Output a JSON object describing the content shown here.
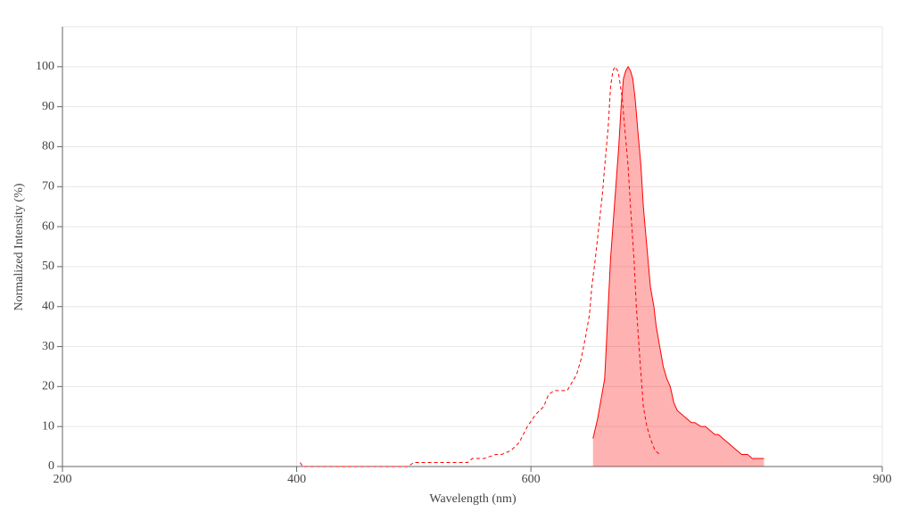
{
  "chart_data": {
    "type": "line",
    "x_label": "Wavelength (nm)",
    "y_label": "Normalized Intensity (%)",
    "xlim": [
      200,
      900
    ],
    "xticks": [
      200,
      400,
      600,
      900
    ],
    "ylim": [
      0,
      110
    ],
    "yticks": [
      0,
      10,
      20,
      30,
      40,
      50,
      60,
      70,
      80,
      90,
      100
    ],
    "grid": true,
    "series": [
      {
        "color": "#ff0000",
        "style": "dashed",
        "fill": false,
        "x": [
          403,
          405,
          420,
          440,
          460,
          480,
          495,
          500,
          520,
          546,
          550,
          560,
          570,
          575,
          583,
          590,
          597,
          604,
          611,
          615,
          620,
          626,
          631,
          635,
          639,
          643,
          647,
          650,
          652,
          655,
          658,
          661,
          663,
          666,
          668,
          670,
          672,
          674,
          675,
          678,
          680,
          683,
          685,
          688,
          690,
          693,
          696,
          699,
          702,
          706,
          710
        ],
        "values": [
          1,
          0,
          0,
          0,
          0,
          0,
          0,
          1,
          1,
          1,
          2,
          2,
          3,
          3,
          4,
          6,
          10,
          13,
          15,
          18,
          19,
          19,
          19,
          21,
          23,
          27,
          33,
          38,
          45,
          52,
          60,
          68,
          75,
          85,
          95,
          99,
          100,
          99,
          98,
          92,
          85,
          75,
          65,
          52,
          40,
          27,
          15,
          10,
          7,
          4,
          3
        ]
      },
      {
        "color": "#ff0000",
        "style": "solid",
        "fill": true,
        "x": [
          653,
          657,
          660,
          663,
          666,
          668,
          670,
          673,
          675,
          677,
          679,
          681,
          683,
          685,
          687,
          689,
          691,
          694,
          696,
          699,
          702,
          705,
          707,
          710,
          713,
          716,
          719,
          722,
          725,
          729,
          733,
          737,
          740,
          745,
          749,
          753,
          757,
          760,
          764,
          768,
          772,
          776,
          780,
          785,
          789,
          794,
          799
        ],
        "values": [
          7,
          12,
          17,
          22,
          40,
          52,
          60,
          72,
          80,
          90,
          97,
          99,
          100,
          99,
          97,
          92,
          85,
          75,
          65,
          55,
          45,
          40,
          35,
          30,
          25,
          22,
          20,
          16,
          14,
          13,
          12,
          11,
          11,
          10,
          10,
          9,
          8,
          8,
          7,
          6,
          5,
          4,
          3,
          3,
          2,
          2,
          2
        ]
      }
    ]
  }
}
